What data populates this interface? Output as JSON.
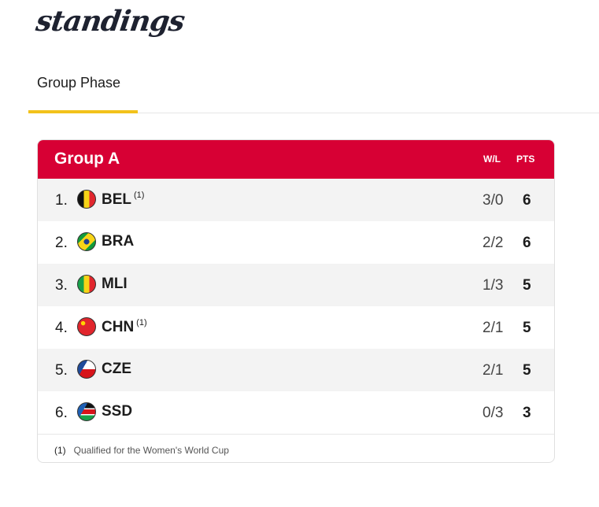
{
  "logo": "standings",
  "tabs": [
    {
      "label": "Group Phase",
      "active": true
    }
  ],
  "group": {
    "title": "Group A",
    "col_wl": "W/L",
    "col_pts": "PTS",
    "rows": [
      {
        "rank": "1.",
        "code": "BEL",
        "note": "(1)",
        "wl": "3/0",
        "pts": "6",
        "flag": "belgium"
      },
      {
        "rank": "2.",
        "code": "BRA",
        "note": "",
        "wl": "2/2",
        "pts": "6",
        "flag": "brazil"
      },
      {
        "rank": "3.",
        "code": "MLI",
        "note": "",
        "wl": "1/3",
        "pts": "5",
        "flag": "mali"
      },
      {
        "rank": "4.",
        "code": "CHN",
        "note": "(1)",
        "wl": "2/1",
        "pts": "5",
        "flag": "china"
      },
      {
        "rank": "5.",
        "code": "CZE",
        "note": "",
        "wl": "2/1",
        "pts": "5",
        "flag": "czechia"
      },
      {
        "rank": "6.",
        "code": "SSD",
        "note": "",
        "wl": "0/3",
        "pts": "3",
        "flag": "south-sudan"
      }
    ],
    "footnote": {
      "marker": "(1)",
      "text": "Qualified for the Women's World Cup"
    }
  },
  "colors": {
    "header": "#d70034",
    "tab_indicator": "#f2c21b"
  }
}
